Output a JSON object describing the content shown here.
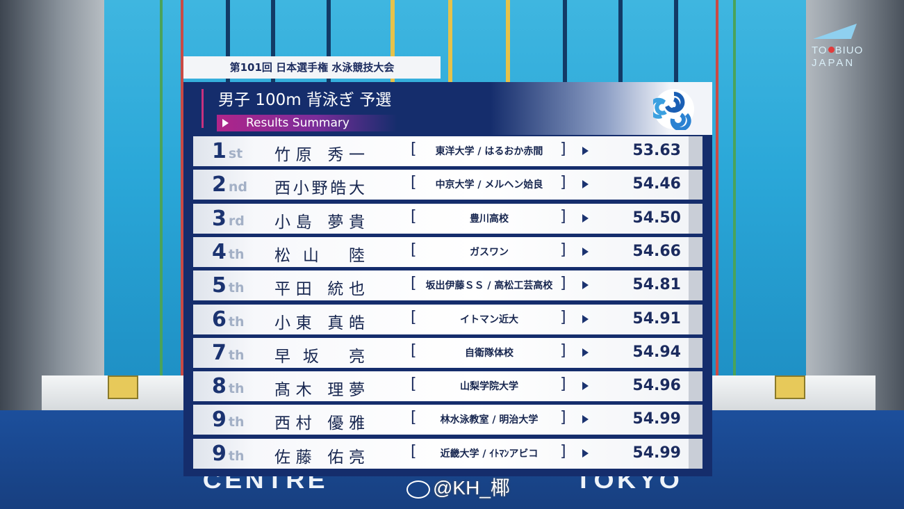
{
  "meet_title": "第101回 日本選手権 水泳競技大会",
  "event_title": "男子 100m 背泳ぎ 予選",
  "subtitle": "Results Summary",
  "broadcaster_logo": {
    "line1_a": "TO",
    "line1_b": "BIUO",
    "line2": "JAPAN"
  },
  "venue_text": {
    "left": "CENTRE",
    "right": "TOKYO"
  },
  "watermark": "@KH_椰",
  "colors": {
    "panel": "#152d6c",
    "accent": "#c8327e",
    "row": "#ffffff",
    "text": "#1b2b5e"
  },
  "results": [
    {
      "rank": "1",
      "suffix": "st",
      "name": "竹原 秀一",
      "club": "東洋大学 / はるおか赤間",
      "time": "53.63"
    },
    {
      "rank": "2",
      "suffix": "nd",
      "name": "西小野皓大",
      "club": "中京大学 / メルヘン姶良",
      "time": "54.46"
    },
    {
      "rank": "3",
      "suffix": "rd",
      "name": "小島 夢貴",
      "club": "豊川高校",
      "time": "54.50"
    },
    {
      "rank": "4",
      "suffix": "th",
      "name": "松山 陸",
      "club": "ガスワン",
      "time": "54.66"
    },
    {
      "rank": "5",
      "suffix": "th",
      "name": "平田 統也",
      "club": "坂出伊藤ＳＳ / 高松工芸高校",
      "time": "54.81"
    },
    {
      "rank": "6",
      "suffix": "th",
      "name": "小東 真皓",
      "club": "イトマン近大",
      "time": "54.91"
    },
    {
      "rank": "7",
      "suffix": "th",
      "name": "早坂 亮",
      "club": "自衛隊体校",
      "time": "54.94"
    },
    {
      "rank": "8",
      "suffix": "th",
      "name": "髙木 理夢",
      "club": "山梨学院大学",
      "time": "54.96"
    },
    {
      "rank": "9",
      "suffix": "th",
      "name": "西村 優雅",
      "club": "林水泳教室 / 明治大学",
      "time": "54.99"
    },
    {
      "rank": "9",
      "suffix": "th",
      "name": "佐藤 佑亮",
      "club": "近畿大学 / ｲﾄﾏﾝアビコ",
      "time": "54.99"
    }
  ]
}
